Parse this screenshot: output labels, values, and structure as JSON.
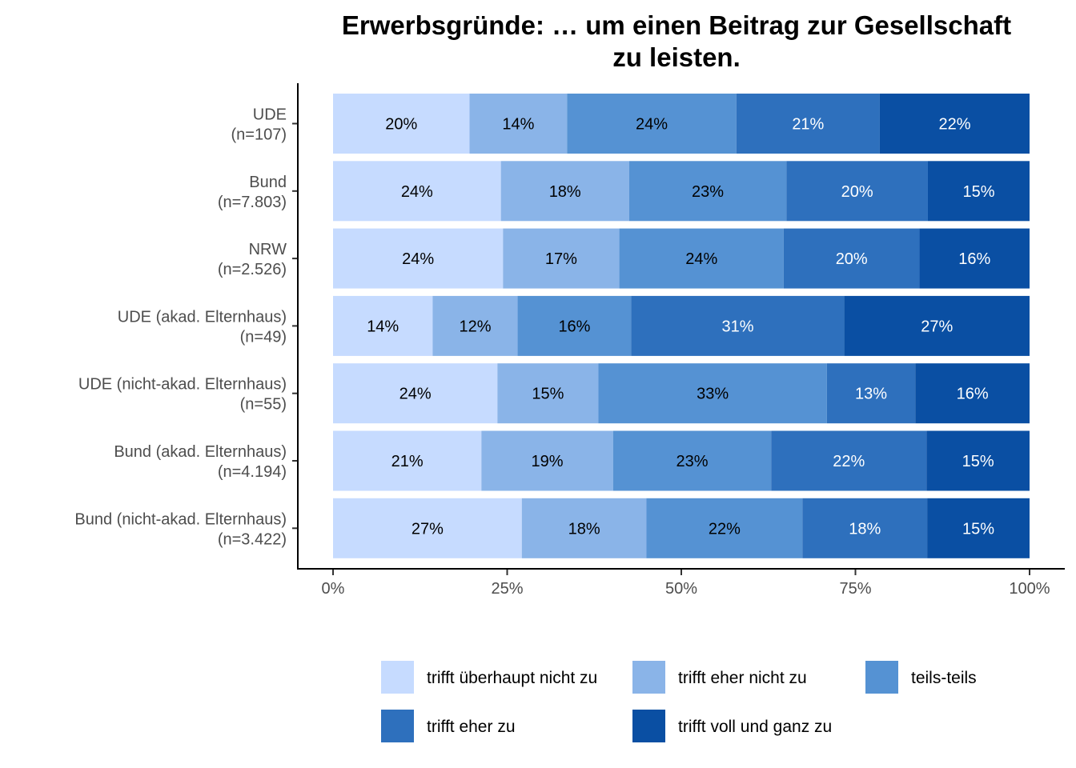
{
  "chart_data": {
    "type": "bar",
    "orientation": "horizontal",
    "stacked": "percent",
    "title_lines": [
      "Erwerbsgründe: … um einen Beitrag zur Gesellschaft",
      "zu leisten."
    ],
    "categories": [
      [
        "UDE",
        "(n=107)"
      ],
      [
        "Bund",
        "(n=7.803)"
      ],
      [
        "NRW",
        "(n=2.526)"
      ],
      [
        "UDE (akad. Elternhaus)",
        "(n=49)"
      ],
      [
        "UDE (nicht-akad. Elternhaus)",
        "(n=55)"
      ],
      [
        "Bund (akad. Elternhaus)",
        "(n=4.194)"
      ],
      [
        "Bund (nicht-akad. Elternhaus)",
        "(n=3.422)"
      ]
    ],
    "series": [
      {
        "name": "trifft überhaupt nicht zu",
        "color": "#c6dbff",
        "label_color": "#000000",
        "values": [
          19.6,
          24.1,
          24.4,
          14.3,
          23.6,
          21.3,
          27.1
        ],
        "labels": [
          "20%",
          "24%",
          "24%",
          "14%",
          "24%",
          "21%",
          "27%"
        ]
      },
      {
        "name": "trifft eher nicht zu",
        "color": "#8ab4e8",
        "label_color": "#000000",
        "values": [
          14.0,
          18.4,
          16.7,
          12.2,
          14.5,
          18.9,
          17.9
        ],
        "labels": [
          "14%",
          "18%",
          "17%",
          "12%",
          "15%",
          "19%",
          "18%"
        ]
      },
      {
        "name": "teils-teils",
        "color": "#5592d3",
        "label_color": "#000000",
        "values": [
          24.3,
          22.6,
          23.6,
          16.3,
          32.8,
          22.7,
          22.4
        ],
        "labels": [
          "24%",
          "23%",
          "24%",
          "16%",
          "33%",
          "23%",
          "22%"
        ]
      },
      {
        "name": "trifft eher zu",
        "color": "#2e70bd",
        "label_color": "#ffffff",
        "values": [
          20.6,
          20.3,
          19.5,
          30.6,
          12.7,
          22.3,
          17.9
        ],
        "labels": [
          "21%",
          "20%",
          "20%",
          "31%",
          "13%",
          "22%",
          "18%"
        ]
      },
      {
        "name": "trifft voll und ganz zu",
        "color": "#0a4fa3",
        "label_color": "#ffffff",
        "values": [
          21.5,
          14.6,
          15.8,
          26.6,
          16.4,
          14.8,
          14.7
        ],
        "labels": [
          "22%",
          "15%",
          "16%",
          "27%",
          "16%",
          "15%",
          "15%"
        ]
      }
    ],
    "x_ticks": [
      {
        "value": 0,
        "label": "0%"
      },
      {
        "value": 25,
        "label": "25%"
      },
      {
        "value": 50,
        "label": "50%"
      },
      {
        "value": 75,
        "label": "75%"
      },
      {
        "value": 100,
        "label": "100%"
      }
    ],
    "xlim": [
      0,
      100
    ],
    "grid": false,
    "legend_position": "bottom"
  }
}
